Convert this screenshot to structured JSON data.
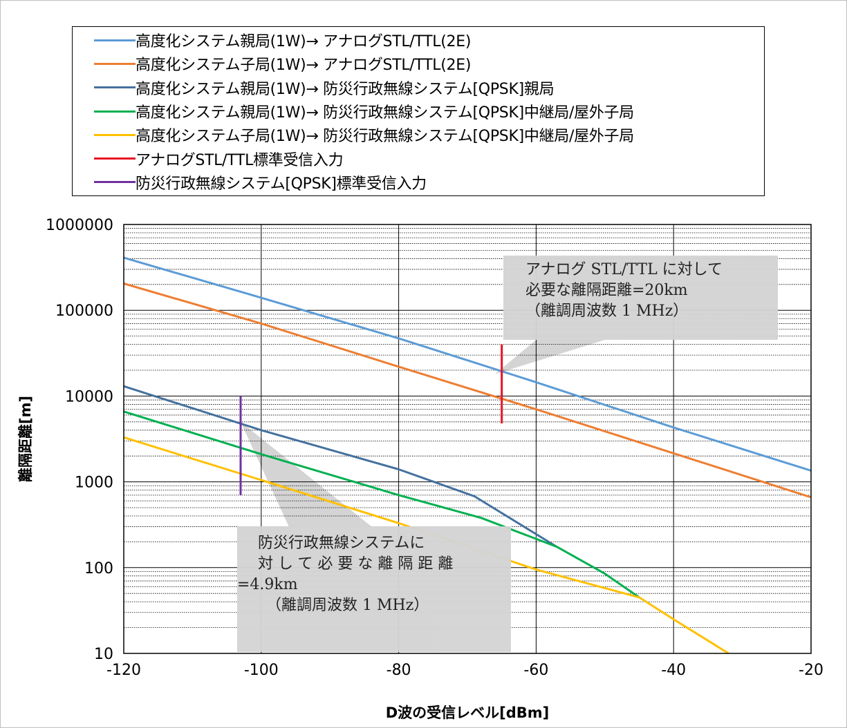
{
  "legend": [
    {
      "label": "高度化システム親局(1W)→ アナログSTL/TTL(2E)",
      "color": "#5b9bd5"
    },
    {
      "label": "高度化システム子局(1W)→ アナログSTL/TTL(2E)",
      "color": "#ed7d31"
    },
    {
      "label": "高度化システム親局(1W)→ 防災行政無線システム[QPSK]親局",
      "color": "#44719e"
    },
    {
      "label": "高度化システム親局(1W)→ 防災行政無線システム[QPSK]中継局/屋外子局",
      "color": "#00b050"
    },
    {
      "label": "高度化システム子局(1W)→ 防災行政無線システム[QPSK]中継局/屋外子局",
      "color": "#ffc000"
    },
    {
      "label": "アナログSTL/TTL標準受信入力",
      "color": "#e81123"
    },
    {
      "label": "防災行政無線システム[QPSK]標準受信入力",
      "color": "#7030a0"
    }
  ],
  "callouts": {
    "stl": [
      "アナログ STL/TTL に対して",
      "必要な離隔距離=20km",
      "（離調周波数 1 MHz）"
    ],
    "bosai": [
      "防災行政無線システムに",
      "対して必要な離隔距離",
      "=4.9km",
      "（離調周波数 1 MHz）"
    ]
  },
  "chart_data": {
    "type": "line",
    "xlabel": "D波の受信レベル[dBm]",
    "ylabel": "離隔距離[m]",
    "xlim": [
      -120,
      -20
    ],
    "ylim": [
      10,
      1000000
    ],
    "yscale": "log",
    "x_ticks": [
      "-120",
      "-100",
      "-80",
      "-60",
      "-40",
      "-20"
    ],
    "y_ticks": [
      "10",
      "100",
      "1000",
      "10000",
      "100000",
      "1000000"
    ],
    "grid": true,
    "legend_position": "top",
    "series": [
      {
        "name": "高度化システム親局(1W)→ アナログSTL/TTL(2E)",
        "color": "#5b9bd5",
        "points": [
          [
            -120,
            410000
          ],
          [
            -100,
            140000
          ],
          [
            -80,
            47000
          ],
          [
            -60,
            14500
          ],
          [
            -40,
            4300
          ],
          [
            -20,
            1350
          ]
        ]
      },
      {
        "name": "高度化システム子局(1W)→ アナログSTL/TTL(2E)",
        "color": "#ed7d31",
        "points": [
          [
            -120,
            205000
          ],
          [
            -100,
            70000
          ],
          [
            -80,
            22000
          ],
          [
            -60,
            7000
          ],
          [
            -40,
            2150
          ],
          [
            -20,
            660
          ]
        ]
      },
      {
        "name": "高度化システム親局(1W)→ 防災行政無線システム[QPSK]親局",
        "color": "#44719e",
        "points": [
          [
            -120,
            13000
          ],
          [
            -100,
            4000
          ],
          [
            -80,
            1400
          ],
          [
            -69,
            680
          ],
          [
            -57,
            175
          ]
        ]
      },
      {
        "name": "高度化システム親局(1W)→ 防災行政無線システム[QPSK]中継局/屋外子局",
        "color": "#00b050",
        "points": [
          [
            -120,
            6600
          ],
          [
            -100,
            2100
          ],
          [
            -80,
            700
          ],
          [
            -68,
            380
          ],
          [
            -57,
            175
          ],
          [
            -50,
            85
          ],
          [
            -45,
            45
          ]
        ]
      },
      {
        "name": "高度化システム子局(1W)→ 防災行政無線システム[QPSK]中継局/屋外子局",
        "color": "#ffc000",
        "points": [
          [
            -120,
            3300
          ],
          [
            -100,
            1050
          ],
          [
            -80,
            330
          ],
          [
            -60,
            95
          ],
          [
            -45,
            45
          ],
          [
            -40,
            25
          ],
          [
            -32,
            10
          ]
        ]
      },
      {
        "name": "アナログSTL/TTL標準受信入力",
        "color": "#e81123",
        "points": [
          [
            -65,
            40000
          ],
          [
            -65,
            4800
          ]
        ]
      },
      {
        "name": "防災行政無線システム[QPSK]標準受信入力",
        "color": "#7030a0",
        "points": [
          [
            -103,
            10000
          ],
          [
            -103,
            700
          ]
        ]
      }
    ]
  }
}
